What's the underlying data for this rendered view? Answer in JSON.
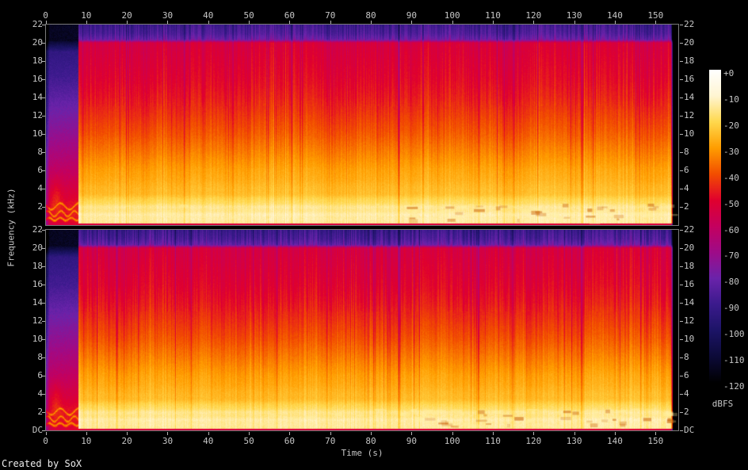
{
  "footer": {
    "credit": "Created by SoX"
  },
  "chart_data": {
    "type": "heatmap",
    "subtype": "audio-spectrogram",
    "tool": "SoX",
    "channels": [
      "left",
      "right"
    ],
    "x_axis": {
      "label": "Time (s)",
      "min": 0,
      "max": 155.5,
      "tick_step": 10,
      "tick_labels": [
        "0",
        "10",
        "20",
        "30",
        "40",
        "50",
        "60",
        "70",
        "80",
        "90",
        "100",
        "110",
        "120",
        "130",
        "140",
        "150"
      ]
    },
    "y_axis": {
      "label": "Frequency (kHz)",
      "min": 0,
      "max": 22,
      "tick_step": 2,
      "tick_labels_top_to_bottom": [
        "22",
        "20",
        "18",
        "16",
        "14",
        "12",
        "10",
        "8",
        "6",
        "4",
        "2",
        "DC"
      ]
    },
    "colorbar": {
      "label": "dBFS",
      "tick_labels": [
        "+0",
        "-10",
        "-20",
        "-30",
        "-40",
        "-50",
        "-60",
        "-70",
        "-80",
        "-90",
        "-100",
        "-110",
        "-120"
      ],
      "palette": [
        {
          "db": 0,
          "color": "#ffffff"
        },
        {
          "db": -10,
          "color": "#fff5d2"
        },
        {
          "db": -20,
          "color": "#ffd84d"
        },
        {
          "db": -30,
          "color": "#ff9d00"
        },
        {
          "db": -40,
          "color": "#f24d00"
        },
        {
          "db": -50,
          "color": "#e0002e"
        },
        {
          "db": -60,
          "color": "#c4005e"
        },
        {
          "db": -70,
          "color": "#9e0b88"
        },
        {
          "db": -80,
          "color": "#6a23aa"
        },
        {
          "db": -90,
          "color": "#3a1a8c"
        },
        {
          "db": -100,
          "color": "#1c1466"
        },
        {
          "db": -110,
          "color": "#0c0a38"
        },
        {
          "db": -120,
          "color": "#000000"
        }
      ]
    },
    "content": {
      "duration_s": 154.1,
      "quiet_intro_end_s": 7.9,
      "section_breaks_s": [
        86.8,
        106.4,
        131.8
      ],
      "band_profile_db": [
        [
          0,
          -15
        ],
        [
          0.6,
          -13.5
        ],
        [
          1.3,
          -14.5
        ],
        [
          2,
          -17
        ],
        [
          2.8,
          -20
        ],
        [
          4,
          -25
        ],
        [
          5,
          -27.5
        ],
        [
          6,
          -29
        ],
        [
          8,
          -34
        ],
        [
          10,
          -39
        ],
        [
          12,
          -43
        ],
        [
          14,
          -47
        ],
        [
          16,
          -50
        ],
        [
          18,
          -52
        ],
        [
          20,
          -54
        ],
        [
          20.35,
          -80
        ],
        [
          21,
          -86
        ],
        [
          22,
          -90
        ]
      ]
    }
  }
}
